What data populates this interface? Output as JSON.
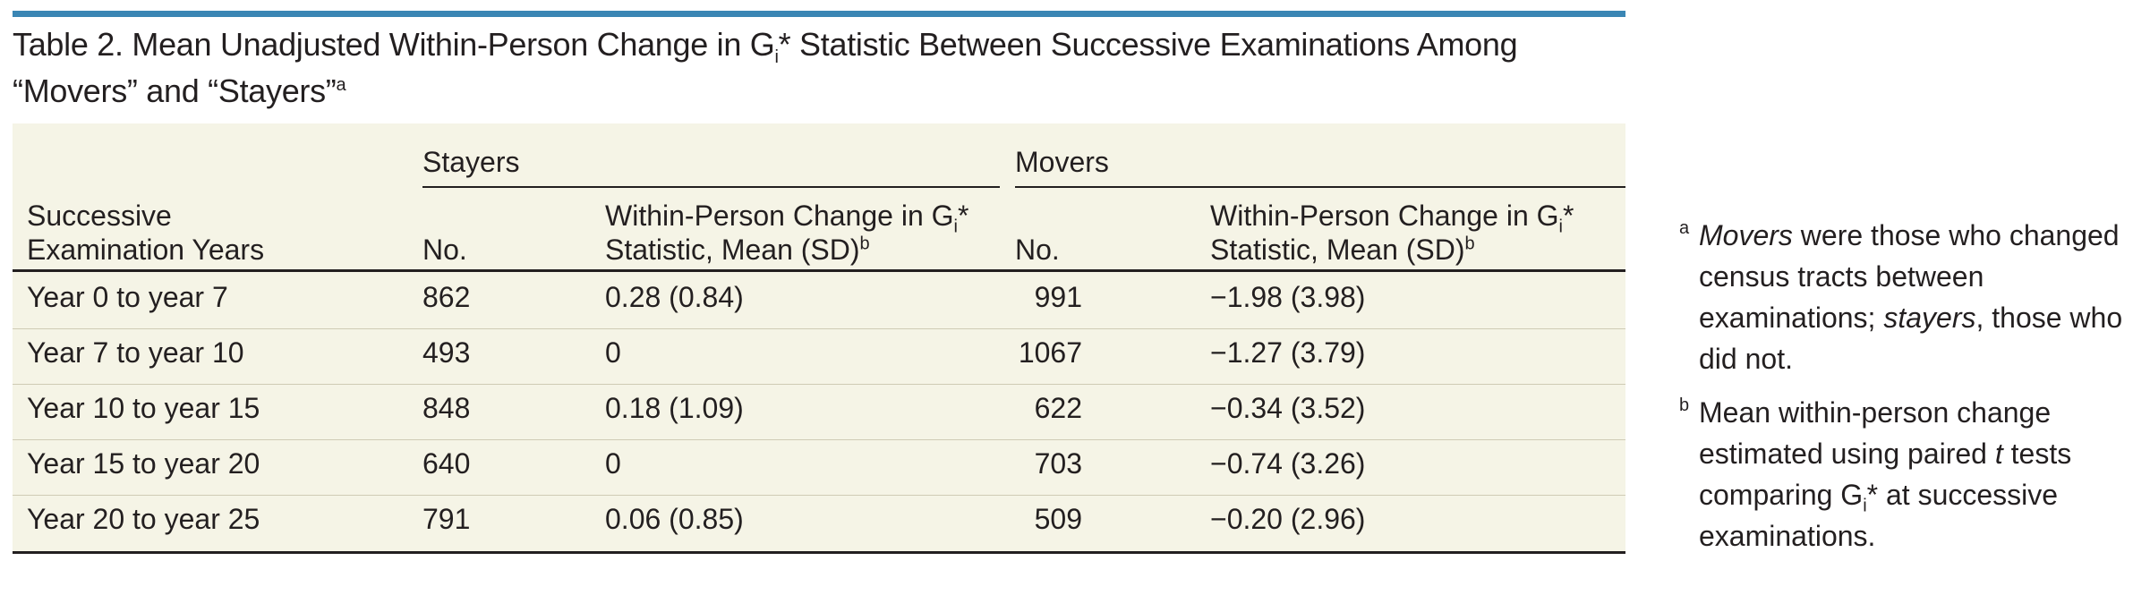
{
  "title": {
    "line1_a": "Table 2. Mean Unadjusted Within-Person Change in G",
    "line1_sub": "i",
    "line1_b": "* Statistic Between Successive Examinations Among",
    "line2": "“Movers” and “Stayers”",
    "line2_sup": "a"
  },
  "table": {
    "group_stayers": "Stayers",
    "group_movers": "Movers",
    "col_years_1": "Successive",
    "col_years_2": "Examination Years",
    "col_no": "No.",
    "col_change_1a": "Within-Person Change in G",
    "col_change_1sub": "i",
    "col_change_1b": "*",
    "col_change_2": "Statistic, Mean (SD)",
    "col_change_sup": "b",
    "rows": [
      {
        "years": "Year 0 to year 7",
        "stayers_no": "862",
        "stayers_change": "0.28 (0.84)",
        "movers_no": "991",
        "movers_change": "−1.98 (3.98)"
      },
      {
        "years": "Year 7 to year 10",
        "stayers_no": "493",
        "stayers_change": "0",
        "movers_no": "1067",
        "movers_change": "−1.27 (3.79)"
      },
      {
        "years": "Year 10 to year 15",
        "stayers_no": "848",
        "stayers_change": "0.18 (1.09)",
        "movers_no": "622",
        "movers_change": "−0.34 (3.52)"
      },
      {
        "years": "Year 15 to year 20",
        "stayers_no": "640",
        "stayers_change": "0",
        "movers_no": "703",
        "movers_change": "−0.74 (3.26)"
      },
      {
        "years": "Year 20 to year 25",
        "stayers_no": "791",
        "stayers_change": "0.06 (0.85)",
        "movers_no": "509",
        "movers_change": "−0.20 (2.96)"
      }
    ]
  },
  "footnotes": {
    "a_mark": "a",
    "a_em1": "Movers",
    "a_text1": " were those who changed census tracts between examinations; ",
    "a_em2": "stayers",
    "a_text2": ", those who did not.",
    "b_mark": "b",
    "b_text1": "Mean within-person change estimated using paired ",
    "b_em": "t",
    "b_text2": " tests comparing G",
    "b_sub": "i",
    "b_text3": "* at successive examinations."
  }
}
